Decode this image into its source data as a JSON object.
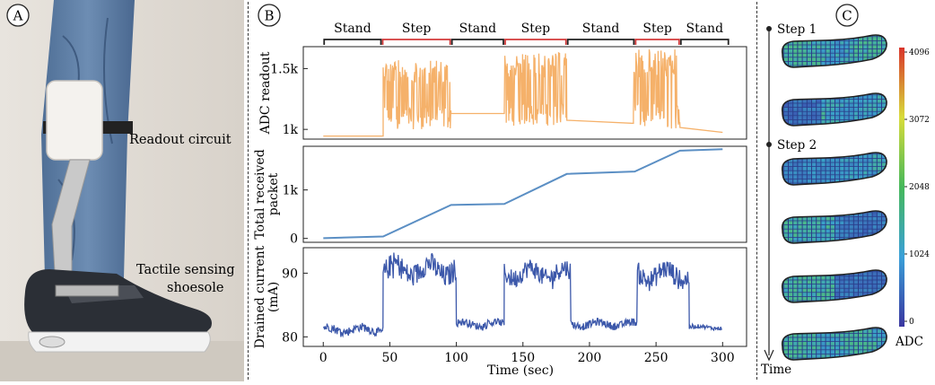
{
  "panelA": {
    "letter": "A",
    "labelReadout": "Readout circuit",
    "labelTactileLine1": "Tactile sensing",
    "labelTactileLine2": "shoesole"
  },
  "panelB": {
    "letter": "B",
    "phases": [
      {
        "label": "Stand",
        "start": 0,
        "end": 44,
        "color": "#222222"
      },
      {
        "label": "Step",
        "start": 44,
        "end": 96,
        "color": "#d23a3a"
      },
      {
        "label": "Stand",
        "start": 96,
        "end": 136,
        "color": "#222222"
      },
      {
        "label": "Step",
        "start": 136,
        "end": 183,
        "color": "#d23a3a"
      },
      {
        "label": "Stand",
        "start": 183,
        "end": 234,
        "color": "#222222"
      },
      {
        "label": "Step",
        "start": 234,
        "end": 268,
        "color": "#d23a3a"
      },
      {
        "label": "Stand",
        "start": 268,
        "end": 305,
        "color": "#222222"
      }
    ],
    "xlabel": "Time (sec)"
  },
  "chart_data": [
    {
      "type": "line",
      "ylabel": "ADC readout",
      "color": "#f5b16a",
      "xlim": [
        -15,
        318
      ],
      "ylim": [
        920,
        1680
      ],
      "yticks": [
        1000,
        1500
      ],
      "yticklabels": [
        "1k",
        "1.5k"
      ],
      "segments": [
        {
          "kind": "flat",
          "x": [
            0,
            45
          ],
          "y": [
            945,
            945
          ]
        },
        {
          "kind": "noise",
          "x": [
            45,
            96
          ],
          "low": 1000,
          "high": 1570
        },
        {
          "kind": "flat",
          "x": [
            96,
            136
          ],
          "y": [
            1130,
            1130
          ]
        },
        {
          "kind": "noise",
          "x": [
            136,
            183
          ],
          "low": 1030,
          "high": 1630
        },
        {
          "kind": "flat",
          "x": [
            183,
            233
          ],
          "y": [
            1075,
            1050
          ]
        },
        {
          "kind": "noise",
          "x": [
            233,
            268
          ],
          "low": 1000,
          "high": 1660
        },
        {
          "kind": "flat",
          "x": [
            268,
            300
          ],
          "y": [
            1015,
            975
          ]
        }
      ]
    },
    {
      "type": "line",
      "ylabel": "Total received packet",
      "color": "#5b8fc4",
      "xlim": [
        -15,
        318
      ],
      "ylim": [
        -80,
        1900
      ],
      "yticks": [
        0,
        1000
      ],
      "yticklabels": [
        "0",
        "1k"
      ],
      "x": [
        0,
        45,
        96,
        136,
        183,
        234,
        268,
        300
      ],
      "y": [
        5,
        40,
        690,
        710,
        1330,
        1380,
        1810,
        1840
      ]
    },
    {
      "type": "line",
      "ylabel": "Drained current (mA)",
      "color": "#3c58aa",
      "xlim": [
        -15,
        318
      ],
      "ylim": [
        78.5,
        94
      ],
      "yticks": [
        80,
        90
      ],
      "yticklabels": [
        "80",
        "90"
      ],
      "xticks": [
        0,
        50,
        100,
        150,
        200,
        250,
        300
      ],
      "xticklabels": [
        "0",
        "50",
        "100",
        "150",
        "200",
        "250",
        "300"
      ],
      "segments": [
        {
          "kind": "noise",
          "x": [
            0,
            45
          ],
          "low": 80.0,
          "high": 82.3
        },
        {
          "kind": "noise",
          "x": [
            45,
            100
          ],
          "low": 87.5,
          "high": 93.5
        },
        {
          "kind": "noise",
          "x": [
            100,
            136
          ],
          "low": 81.0,
          "high": 83.0
        },
        {
          "kind": "noise",
          "x": [
            136,
            186
          ],
          "low": 87.5,
          "high": 92.5
        },
        {
          "kind": "noise",
          "x": [
            186,
            236
          ],
          "low": 81.0,
          "high": 83.0
        },
        {
          "kind": "noise",
          "x": [
            236,
            275
          ],
          "low": 87.0,
          "high": 92.5
        },
        {
          "kind": "noise",
          "x": [
            275,
            300
          ],
          "low": 81.0,
          "high": 82.0
        }
      ]
    }
  ],
  "panelC": {
    "letter": "C",
    "step1": "Step 1",
    "step2": "Step 2",
    "timeLabel": "Time",
    "colorbar": {
      "ticks": [
        "4096",
        "3072",
        "2048",
        "1024",
        "0"
      ],
      "label": "ADC"
    },
    "colors": {
      "low": "#3b4fb0",
      "mid": "#4ab88c",
      "high": "#d9342b"
    }
  }
}
